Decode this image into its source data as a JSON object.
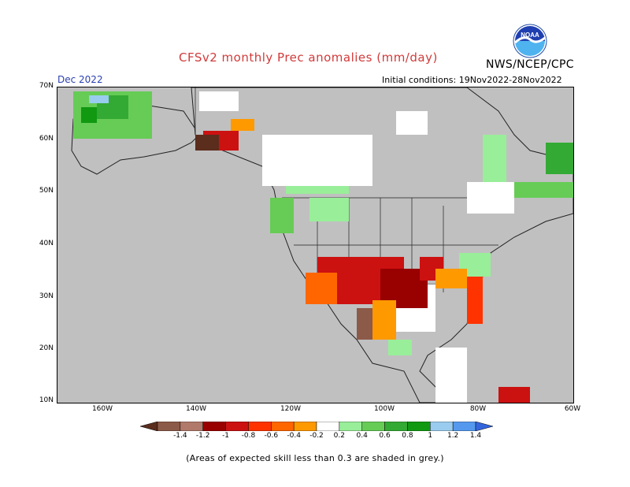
{
  "header": {
    "title": "CFSv2 monthly Prec anomalies (mm/day)",
    "agency": "NWS/NCEP/CPC",
    "logo_text": "NOAA",
    "month": "Dec 2022",
    "initial_conditions": "Initial conditions: 19Nov2022-28Nov2022"
  },
  "map": {
    "lat_labels": [
      "70N",
      "60N",
      "50N",
      "40N",
      "30N",
      "20N",
      "10N"
    ],
    "lon_labels": [
      "160W",
      "140W",
      "120W",
      "100W",
      "80W",
      "60W"
    ],
    "background_color": "#c0c0c0",
    "regions": [
      {
        "name": "Alaska west wet",
        "category": "wet"
      },
      {
        "name": "Southeast Alaska / BC coast dry",
        "category": "dry"
      },
      {
        "name": "Southern US dry",
        "category": "dry"
      },
      {
        "name": "Texas / Louisiana very dry",
        "category": "very dry"
      },
      {
        "name": "Pacific Northwest wet",
        "category": "wet"
      },
      {
        "name": "Ohio Valley wet",
        "category": "wet"
      },
      {
        "name": "Atlantic Canada wet",
        "category": "wet"
      }
    ]
  },
  "legend": {
    "tick_labels": [
      "-1.4",
      "-1.2",
      "-1",
      "-0.8",
      "-0.6",
      "-0.4",
      "-0.2",
      "0.2",
      "0.4",
      "0.6",
      "0.8",
      "1",
      "1.2",
      "1.4"
    ],
    "colors": [
      "#5a2d1c",
      "#8c5a48",
      "#b0796a",
      "#990000",
      "#cc1111",
      "#ff3300",
      "#ff6600",
      "#ff9900",
      "#ffffff",
      "#99ee99",
      "#66cc55",
      "#33aa33",
      "#119911",
      "#99ccee",
      "#5599ee",
      "#3366dd"
    ]
  },
  "footnote": "(Areas of expected skill less than 0.3 are shaded in grey.)"
}
